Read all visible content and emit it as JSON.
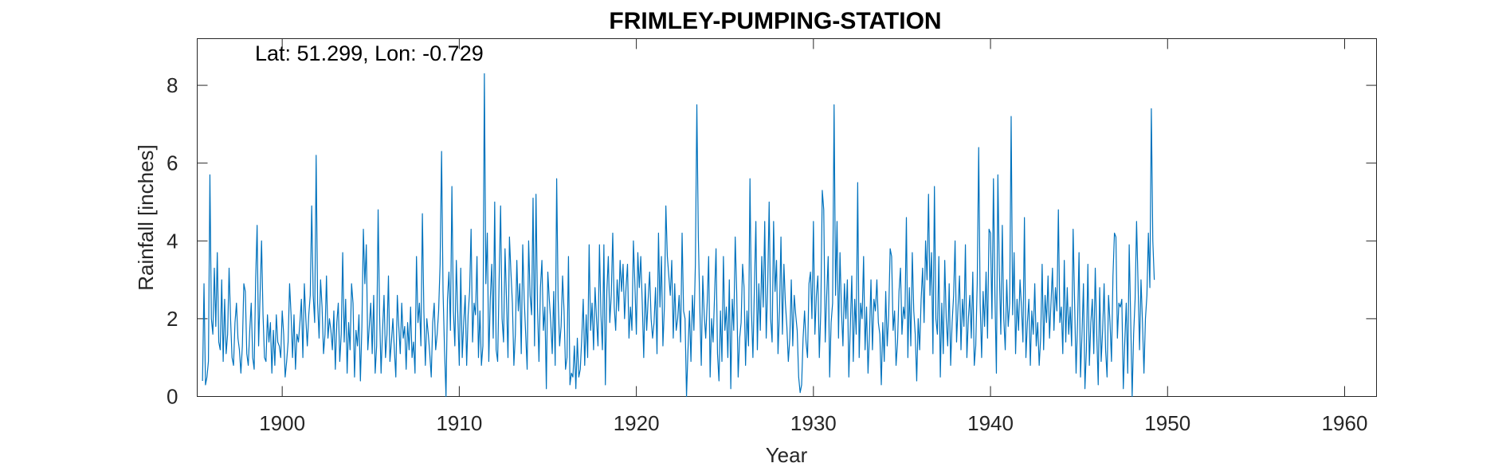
{
  "chart_data": {
    "type": "line",
    "title": "FRIMLEY-PUMPING-STATION",
    "annotation": "Lat: 51.299, Lon: -0.729",
    "xlabel": "Year",
    "ylabel": "Rainfall [inches]",
    "xlim": [
      1895.2,
      1961.8
    ],
    "ylim": [
      0,
      9.2
    ],
    "xticks": [
      1900,
      1910,
      1920,
      1930,
      1940,
      1950,
      1960
    ],
    "yticks": [
      0,
      2,
      4,
      6,
      8
    ],
    "grid": false,
    "line_color": "#0072BD",
    "series": [
      {
        "x_start": 1895.5,
        "step": 0.083333,
        "values": [
          0.4,
          2.9,
          0.3,
          0.5,
          0.9,
          5.7,
          2.0,
          1.6,
          3.3,
          1.8,
          3.7,
          1.4,
          1.2,
          3.0,
          0.9,
          2.5,
          1.1,
          1.6,
          3.3,
          2.0,
          1.0,
          0.8,
          1.9,
          2.4,
          1.5,
          1.2,
          0.6,
          1.3,
          2.9,
          2.7,
          1.1,
          0.8,
          1.7,
          2.4,
          1.0,
          0.7,
          3.0,
          4.4,
          1.3,
          2.6,
          4.0,
          2.1,
          1.0,
          0.9,
          2.1,
          1.4,
          1.9,
          0.6,
          1.7,
          0.8,
          2.1,
          1.4,
          1.3,
          1.0,
          2.2,
          1.6,
          0.5,
          0.9,
          1.4,
          2.9,
          2.1,
          1.0,
          2.1,
          0.7,
          1.6,
          1.4,
          1.9,
          2.5,
          1.0,
          2.9,
          2.0,
          1.3,
          2.1,
          2.6,
          4.9,
          2.6,
          1.9,
          6.2,
          2.4,
          1.5,
          3.0,
          2.3,
          1.1,
          1.6,
          3.1,
          1.5,
          2.0,
          1.7,
          1.2,
          2.2,
          0.7,
          1.9,
          2.4,
          0.9,
          1.6,
          3.7,
          1.4,
          2.5,
          0.6,
          1.9,
          1.2,
          2.9,
          2.4,
          0.5,
          1.7,
          1.3,
          2.1,
          0.4,
          1.8,
          4.3,
          2.9,
          3.9,
          1.2,
          1.8,
          2.4,
          1.1,
          2.6,
          0.6,
          1.3,
          4.8,
          2.1,
          0.6,
          1.7,
          2.6,
          1.0,
          1.6,
          3.1,
          0.9,
          1.4,
          2.0,
          1.2,
          0.5,
          2.6,
          1.8,
          1.1,
          2.4,
          1.5,
          1.8,
          0.7,
          1.9,
          1.2,
          2.3,
          1.0,
          1.4,
          0.6,
          3.6,
          1.9,
          2.4,
          1.3,
          4.7,
          2.2,
          0.8,
          2.0,
          1.6,
          1.1,
          0.5,
          1.9,
          2.4,
          1.2,
          1.6,
          2.2,
          3.4,
          6.3,
          2.7,
          1.2,
          0.0,
          2.5,
          3.2,
          1.7,
          5.4,
          2.2,
          1.3,
          3.5,
          2.1,
          0.8,
          3.3,
          1.0,
          1.9,
          2.6,
          0.8,
          2.1,
          2.7,
          4.3,
          1.4,
          2.4,
          2.1,
          3.6,
          1.0,
          2.2,
          0.8,
          1.3,
          8.3,
          2.9,
          4.2,
          0.9,
          2.5,
          3.4,
          1.5,
          5.0,
          1.2,
          0.9,
          3.0,
          4.9,
          2.0,
          1.4,
          3.8,
          2.5,
          1.0,
          4.1,
          3.2,
          2.4,
          0.8,
          1.6,
          3.5,
          2.2,
          2.9,
          1.1,
          3.9,
          2.5,
          1.6,
          0.7,
          4.0,
          2.6,
          2.1,
          5.1,
          1.3,
          5.2,
          2.3,
          0.9,
          2.8,
          3.5,
          1.7,
          2.3,
          0.2,
          3.2,
          2.5,
          1.9,
          1.1,
          2.7,
          0.8,
          5.6,
          2.5,
          1.3,
          1.8,
          3.1,
          2.2,
          0.7,
          1.0,
          3.6,
          0.3,
          0.6,
          0.5,
          1.3,
          0.2,
          1.5,
          0.5,
          0.7,
          1.5,
          2.5,
          0.8,
          2.1,
          1.0,
          3.9,
          1.7,
          2.4,
          1.2,
          2.8,
          2.0,
          1.3,
          3.9,
          2.1,
          1.2,
          3.9,
          0.3,
          2.7,
          3.6,
          1.9,
          2.6,
          4.2,
          2.3,
          1.7,
          3.0,
          2.2,
          3.5,
          2.7,
          3.4,
          2.0,
          2.8,
          3.4,
          1.5,
          2.3,
          1.7,
          4.0,
          2.9,
          1.6,
          3.7,
          2.8,
          3.6,
          2.4,
          1.0,
          2.9,
          1.7,
          2.5,
          3.2,
          2.0,
          1.5,
          1.9,
          2.8,
          1.1,
          4.2,
          2.3,
          3.6,
          1.3,
          2.3,
          4.9,
          3.6,
          3.1,
          2.6,
          3.5,
          1.5,
          2.9,
          1.7,
          2.0,
          2.6,
          1.4,
          4.2,
          2.2,
          2.0,
          0.0,
          1.2,
          2.2,
          0.9,
          2.6,
          1.7,
          3.4,
          7.5,
          4.1,
          2.3,
          0.8,
          3.1,
          2.1,
          1.5,
          2.4,
          3.6,
          0.5,
          2.0,
          1.4,
          2.6,
          3.8,
          1.1,
          0.4,
          2.2,
          0.9,
          3.6,
          1.7,
          2.3,
          1.0,
          3.0,
          0.2,
          2.5,
          1.7,
          4.1,
          2.7,
          0.5,
          1.5,
          1.9,
          3.4,
          2.8,
          0.8,
          2.2,
          1.3,
          5.6,
          2.2,
          1.0,
          2.8,
          4.5,
          1.2,
          2.9,
          1.7,
          3.6,
          2.3,
          4.5,
          1.5,
          2.8,
          5.0,
          2.0,
          1.4,
          4.5,
          2.7,
          3.5,
          1.1,
          2.2,
          4.1,
          1.6,
          3.4,
          2.4,
          1.8,
          0.9,
          1.5,
          3.0,
          1.3,
          2.6,
          2.1,
          1.7,
          0.5,
          0.1,
          0.3,
          1.5,
          2.2,
          1.4,
          1.0,
          2.9,
          3.2,
          2.0,
          4.5,
          1.6,
          2.6,
          3.1,
          1.0,
          2.2,
          5.3,
          4.8,
          1.4,
          2.6,
          3.6,
          0.5,
          1.9,
          2.4,
          7.5,
          2.6,
          4.5,
          1.5,
          3.7,
          2.2,
          1.3,
          2.9,
          2.0,
          3.0,
          0.5,
          1.8,
          3.1,
          0.9,
          2.5,
          1.6,
          5.5,
          1.0,
          2.4,
          2.0,
          3.6,
          1.2,
          2.3,
          0.6,
          1.6,
          3.0,
          1.2,
          2.5,
          2.2,
          3.0,
          1.9,
          1.6,
          0.3,
          1.9,
          0.9,
          2.7,
          1.3,
          2.1,
          3.8,
          3.6,
          1.7,
          2.2,
          0.8,
          1.4,
          2.7,
          3.3,
          1.6,
          2.3,
          2.0,
          4.6,
          1.0,
          2.8,
          1.3,
          3.7,
          2.2,
          1.6,
          0.4,
          2.0,
          1.2,
          2.5,
          3.3,
          1.9,
          4.0,
          3.0,
          5.2,
          2.6,
          3.7,
          1.1,
          5.4,
          2.0,
          1.6,
          3.6,
          0.5,
          2.4,
          1.1,
          3.5,
          2.0,
          1.3,
          2.9,
          0.8,
          1.9,
          2.6,
          4.0,
          1.4,
          2.3,
          3.1,
          1.2,
          2.5,
          1.8,
          3.9,
          1.0,
          2.0,
          2.6,
          1.5,
          3.2,
          0.8,
          1.3,
          2.9,
          6.4,
          2.4,
          1.0,
          2.7,
          1.8,
          3.2,
          1.5,
          4.3,
          4.2,
          2.0,
          5.6,
          2.6,
          0.6,
          5.7,
          3.2,
          1.6,
          4.4,
          2.0,
          1.2,
          3.0,
          1.8,
          2.4,
          7.2,
          2.1,
          3.7,
          1.1,
          2.5,
          1.7,
          3.0,
          2.3,
          1.4,
          4.6,
          1.0,
          1.9,
          2.5,
          0.8,
          2.2,
          1.6,
          2.9,
          1.3,
          1.9,
          0.8,
          1.5,
          3.4,
          1.2,
          2.6,
          1.9,
          3.1,
          1.5,
          2.4,
          3.3,
          1.7,
          2.8,
          2.2,
          4.8,
          1.9,
          2.3,
          1.1,
          3.5,
          1.4,
          2.8,
          1.6,
          2.3,
          1.3,
          4.3,
          2.4,
          0.6,
          1.9,
          3.7,
          0.5,
          1.6,
          2.9,
          0.2,
          1.2,
          3.4,
          0.8,
          1.9,
          2.5,
          1.1,
          3.3,
          1.6,
          0.3,
          2.8,
          0.9,
          1.7,
          2.9,
          1.2,
          0.5,
          2.6,
          1.9,
          0.9,
          3.1,
          4.2,
          4.1,
          1.5,
          2.4,
          2.3,
          2.5,
          0.2,
          1.4,
          2.4,
          0.6,
          3.9,
          2.0,
          0.0,
          1.6,
          2.5,
          4.5,
          2.9,
          1.2,
          3.0,
          1.9,
          0.6,
          2.0,
          2.6,
          4.2,
          2.8,
          7.4,
          4.0,
          3.0
        ]
      }
    ]
  }
}
